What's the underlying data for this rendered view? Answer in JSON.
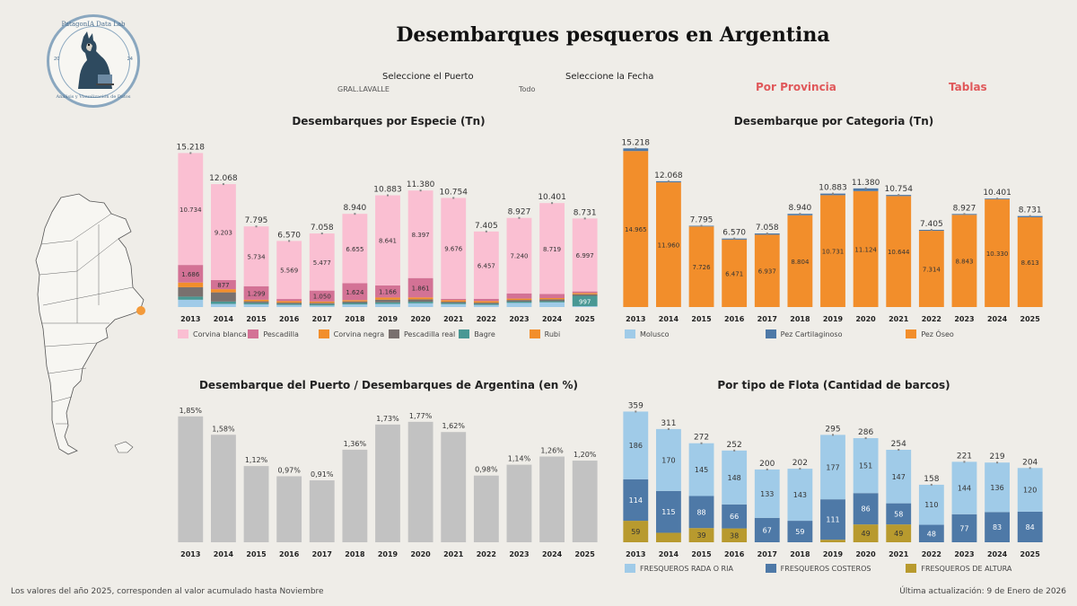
{
  "header": {
    "title": "Desembarques pesqueros en Argentina",
    "logo_text_top": "PatagonIA Data Lab",
    "logo_text_bottom": "Análisis y Visualización de Datos",
    "logo_year_left": "20",
    "logo_year_right": "24",
    "logo_colors": {
      "ring": "#8aa7bf",
      "text": "#4b6f8f"
    }
  },
  "filters": {
    "puerto_label": "Seleccione el Puerto",
    "puerto_value": "GRAL.LAVALLE",
    "fecha_label": "Seleccione la Fecha",
    "fecha_value": "Todo"
  },
  "nav": {
    "provincia": "Por Provincia",
    "tablas": "Tablas"
  },
  "footer": {
    "note": "Los valores del año 2025, corresponden al valor acumulado hasta Noviembre",
    "updated": "Última actualización: 9 de Enero de 2026"
  },
  "map": {
    "land_color": "#f7f6f2",
    "border_color": "#555555",
    "marker_color": "#f39a3a"
  },
  "chart_data": [
    {
      "id": "especie",
      "type": "bar",
      "title": "Desembarques por Especie (Tn)",
      "categories": [
        "2013",
        "2014",
        "2015",
        "2016",
        "2017",
        "2018",
        "2019",
        "2020",
        "2021",
        "2022",
        "2023",
        "2024",
        "2025"
      ],
      "totals": [
        15218,
        12068,
        7795,
        6570,
        7058,
        8940,
        10883,
        11380,
        10754,
        7405,
        8927,
        10401,
        8731
      ],
      "total_labels": [
        "15.218",
        "12.068",
        "7.795",
        "6.570",
        "7.058",
        "8.940",
        "10.883",
        "11.380",
        "10.754",
        "7.405",
        "8.927",
        "10.401",
        "8.731"
      ],
      "ylim": [
        0,
        15500
      ],
      "series": [
        {
          "name": "Rubi",
          "color": "#f28e2b",
          "values": [
            0,
            0,
            0,
            0,
            0,
            0,
            0,
            0,
            0,
            0,
            0,
            0,
            0
          ]
        },
        {
          "name": "Molusco",
          "color": "#a0cbe8",
          "values": [
            700,
            300,
            260,
            200,
            150,
            250,
            300,
            360,
            280,
            200,
            400,
            450,
            80
          ]
        },
        {
          "name": "Bagre",
          "color": "#499894",
          "values": [
            300,
            230,
            140,
            100,
            130,
            140,
            150,
            150,
            110,
            100,
            120,
            110,
            997
          ],
          "labels": [
            "",
            "",
            "",
            "",
            "",
            "",
            "",
            "",
            "",
            "",
            "",
            "",
            "997"
          ]
        },
        {
          "name": "Pescadilla real",
          "color": "#79706e",
          "values": [
            900,
            880,
            150,
            120,
            120,
            150,
            260,
            230,
            120,
            120,
            160,
            180,
            150
          ]
        },
        {
          "name": "Corvina negra",
          "color": "#f28e2b",
          "values": [
            450,
            300,
            150,
            150,
            130,
            120,
            200,
            180,
            150,
            150,
            130,
            120,
            120
          ]
        },
        {
          "name": "Pescadilla",
          "color": "#d37295",
          "values": [
            1686,
            877,
            1299,
            200,
            1050,
            1624,
            1166,
            1861,
            130,
            220,
            500,
            393,
            150
          ],
          "labels": [
            "1.686",
            "877",
            "1.299",
            "",
            "1.050",
            "1.624",
            "1.166",
            "1.861",
            "",
            "",
            "",
            "",
            ""
          ]
        },
        {
          "name": "Corvina blanca",
          "color": "#fabfd2",
          "values": [
            10734,
            9203,
            5734,
            5569,
            5477,
            6655,
            8641,
            8397,
            9676,
            6457,
            7240,
            8719,
            6997
          ],
          "labels": [
            "10.734",
            "9.203",
            "5.734",
            "5.569",
            "5.477",
            "6.655",
            "8.641",
            "8.397",
            "9.676",
            "6.457",
            "7.240",
            "8.719",
            "6.997"
          ]
        }
      ],
      "legend": [
        {
          "name": "Corvina blanca",
          "color": "#fabfd2"
        },
        {
          "name": "Pescadilla",
          "color": "#d37295"
        },
        {
          "name": "Corvina negra",
          "color": "#f28e2b"
        },
        {
          "name": "Pescadilla real",
          "color": "#79706e"
        },
        {
          "name": "Bagre",
          "color": "#499894"
        },
        {
          "name": "Rubi",
          "color": "#f28e2b"
        }
      ]
    },
    {
      "id": "categoria",
      "type": "bar",
      "title": "Desembarque por Categoria (Tn)",
      "categories": [
        "2013",
        "2014",
        "2015",
        "2016",
        "2017",
        "2018",
        "2019",
        "2020",
        "2021",
        "2022",
        "2023",
        "2024",
        "2025"
      ],
      "totals": [
        15218,
        12068,
        7795,
        6570,
        7058,
        8940,
        10883,
        11380,
        10754,
        7405,
        8927,
        10401,
        8731
      ],
      "total_labels": [
        "15.218",
        "12.068",
        "7.795",
        "6.570",
        "7.058",
        "8.940",
        "10.883",
        "11.380",
        "10.754",
        "7.405",
        "8.927",
        "10.401",
        "8.731"
      ],
      "ylim": [
        0,
        15500
      ],
      "series": [
        {
          "name": "Pez Óseo",
          "color": "#f28e2b",
          "values": [
            14965,
            11960,
            7726,
            6471,
            6937,
            8804,
            10731,
            11124,
            10644,
            7314,
            8843,
            10330,
            8613
          ],
          "labels": [
            "14.965",
            "11.960",
            "7.726",
            "6.471",
            "6.937",
            "8.804",
            "10.731",
            "11.124",
            "10.644",
            "7.314",
            "8.843",
            "10.330",
            "8.613"
          ]
        },
        {
          "name": "Pez Cartilaginoso",
          "color": "#4e79a7",
          "values": [
            253,
            108,
            69,
            99,
            121,
            136,
            152,
            256,
            110,
            91,
            84,
            71,
            118
          ]
        }
      ],
      "legend": [
        {
          "name": "Molusco",
          "color": "#a0cbe8"
        },
        {
          "name": "Pez Cartilaginoso",
          "color": "#4e79a7"
        },
        {
          "name": "Pez Óseo",
          "color": "#f28e2b"
        }
      ]
    },
    {
      "id": "porcentaje",
      "type": "bar",
      "title": "Desembarque del Puerto / Desembarques de Argentina (en %)",
      "categories": [
        "2013",
        "2014",
        "2015",
        "2016",
        "2017",
        "2018",
        "2019",
        "2020",
        "2021",
        "2022",
        "2023",
        "2024",
        "2025"
      ],
      "values": [
        1.85,
        1.58,
        1.12,
        0.97,
        0.91,
        1.36,
        1.73,
        1.77,
        1.62,
        0.98,
        1.14,
        1.26,
        1.2
      ],
      "labels": [
        "1,85%",
        "1,58%",
        "1,12%",
        "0,97%",
        "0,91%",
        "1,36%",
        "1,73%",
        "1,77%",
        "1,62%",
        "0,98%",
        "1,14%",
        "1,26%",
        "1,20%"
      ],
      "ylim": [
        0,
        1.9
      ],
      "color": "#c2c2c2"
    },
    {
      "id": "flota",
      "type": "bar",
      "title": "Por tipo de Flota (Cantidad de barcos)",
      "categories": [
        "2013",
        "2014",
        "2015",
        "2016",
        "2017",
        "2018",
        "2019",
        "2020",
        "2021",
        "2022",
        "2023",
        "2024",
        "2025"
      ],
      "totals": [
        359,
        311,
        272,
        252,
        200,
        202,
        295,
        286,
        254,
        158,
        221,
        219,
        204
      ],
      "ylim": [
        0,
        365
      ],
      "series": [
        {
          "name": "FRESQUEROS DE ALTURA",
          "color": "#b89a2e",
          "values": [
            59,
            26,
            39,
            38,
            0,
            0,
            7,
            49,
            49,
            0,
            0,
            0,
            0
          ],
          "labels": [
            "59",
            "",
            "39",
            "38",
            "",
            "",
            "",
            "49",
            "49",
            "",
            "",
            "",
            ""
          ]
        },
        {
          "name": "FRESQUEROS COSTEROS",
          "color": "#4e79a7",
          "values": [
            114,
            115,
            88,
            66,
            67,
            59,
            111,
            86,
            58,
            48,
            77,
            83,
            84
          ],
          "labels": [
            "114",
            "115",
            "88",
            "66",
            "67",
            "59",
            "111",
            "86",
            "58",
            "48",
            "77",
            "83",
            "84"
          ]
        },
        {
          "name": "FRESQUEROS RADA O RIA",
          "color": "#a0cbe8",
          "values": [
            186,
            170,
            145,
            148,
            133,
            143,
            177,
            151,
            147,
            110,
            144,
            136,
            120
          ],
          "labels": [
            "186",
            "170",
            "145",
            "148",
            "133",
            "143",
            "177",
            "151",
            "147",
            "110",
            "144",
            "136",
            "120"
          ]
        }
      ],
      "legend": [
        {
          "name": "FRESQUEROS RADA O RIA",
          "color": "#a0cbe8"
        },
        {
          "name": "FRESQUEROS COSTEROS",
          "color": "#4e79a7"
        },
        {
          "name": "FRESQUEROS DE ALTURA",
          "color": "#b89a2e"
        }
      ]
    }
  ]
}
